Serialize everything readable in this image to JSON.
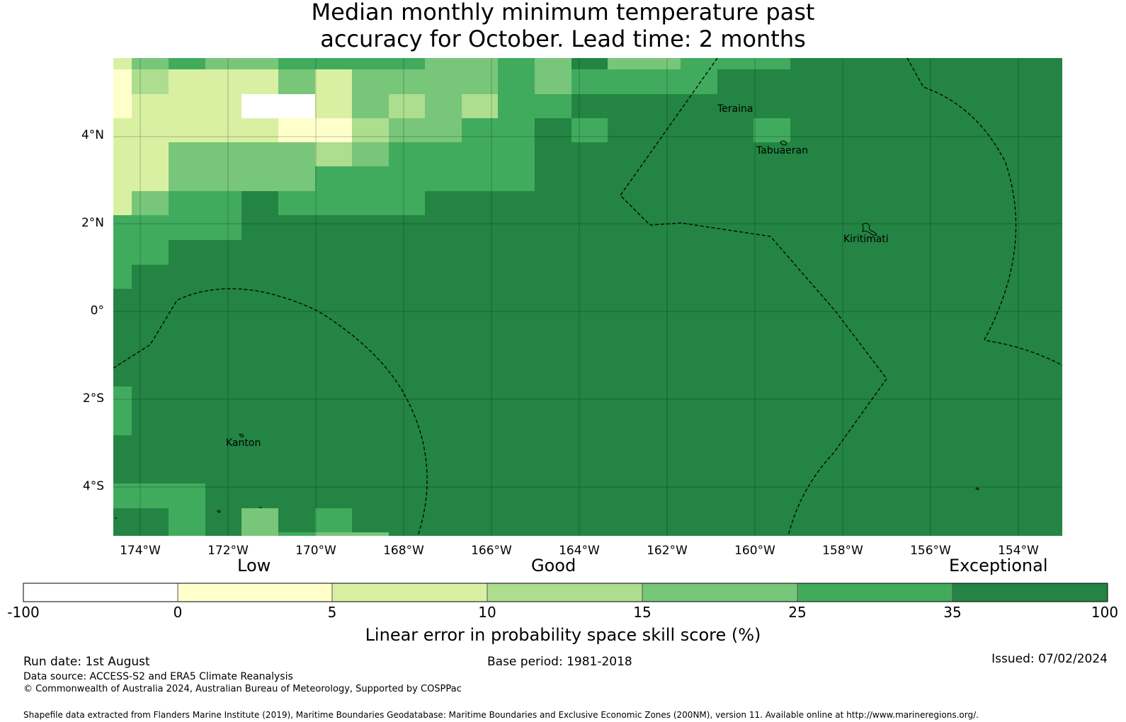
{
  "title_line1": "Median monthly minimum temperature past",
  "title_line2": "accuracy for October. Lead time: 2 months",
  "lat_labels": [
    "4°N",
    "2°N",
    "0°",
    "2°S",
    "4°S"
  ],
  "lon_labels": [
    "174°W",
    "172°W",
    "170°W",
    "168°W",
    "166°W",
    "164°W",
    "162°W",
    "160°W",
    "158°W",
    "156°W",
    "154°W"
  ],
  "places": [
    "Teraina",
    "Tabuaeran",
    "Kiritimati",
    "Kanton"
  ],
  "categories": {
    "low": "Low",
    "good": "Good",
    "exceptional": "Exceptional"
  },
  "colorbar": {
    "ticks": [
      "-100",
      "0",
      "5",
      "10",
      "15",
      "25",
      "35",
      "100"
    ],
    "colors": [
      "#ffffff",
      "#ffffcc",
      "#d9f0a3",
      "#addd8e",
      "#78c679",
      "#41ab5d",
      "#238443"
    ],
    "label": "Linear error in probability space skill score (%)"
  },
  "footer": {
    "run_date": "Run date: 1st August",
    "base_period": "Base period: 1981-2018",
    "issued": "Issued: 07/02/2024",
    "data_source": "Data source: ACCESS-S2 and ERA5 Climate Reanalysis",
    "copyright": "© Commonwealth of Australia 2024, Australian Bureau of Meteorology, Supported by COSPPac",
    "shapefile": "Shapefile data extracted from Flanders Marine Institute (2019), Maritime Boundaries Geodatabase: Maritime Boundaries and Exclusive Economic Zones (200NM), version 11. Available online at http://www.marineregions.org/."
  }
}
